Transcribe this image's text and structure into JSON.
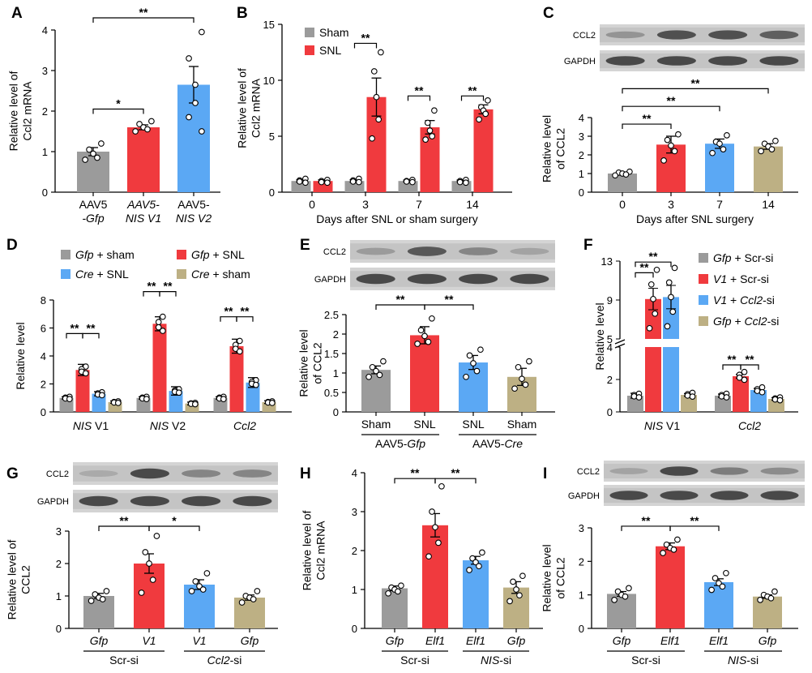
{
  "colors": {
    "gray": "#9B9B9B",
    "red": "#F03A3E",
    "blue": "#5BA8F4",
    "tan": "#BDB084"
  },
  "chart_data": [
    {
      "panel": "A",
      "type": "bar",
      "ylabel": [
        "Relative level of",
        "Ccl2 mRNA"
      ],
      "ylim": [
        0,
        4
      ],
      "yticks": [
        0,
        1,
        2,
        3,
        4
      ],
      "categories": [
        {
          "lines": [
            "AAV5",
            "-Gfp"
          ],
          "italic_second": true
        },
        {
          "lines": [
            "AAV5-",
            "NIS V1"
          ],
          "italic_all": true
        },
        {
          "lines": [
            "AAV5-",
            "NIS V2"
          ],
          "italic_second": true
        }
      ],
      "bars": [
        {
          "value": 1.0,
          "err": 0.1,
          "color": "gray",
          "points": [
            1.2,
            1.05,
            0.95,
            0.85,
            0.8
          ]
        },
        {
          "value": 1.6,
          "err": 0.06,
          "color": "red",
          "points": [
            1.75,
            1.68,
            1.6,
            1.55,
            1.5
          ]
        },
        {
          "value": 2.65,
          "err": 0.45,
          "color": "blue",
          "points": [
            3.95,
            3.3,
            2.65,
            2.2,
            1.85,
            1.5
          ]
        }
      ],
      "sig": [
        {
          "from": 0,
          "to": 1,
          "label": "*",
          "y": 2.05
        },
        {
          "from": 0,
          "to": 2,
          "label": "**",
          "y": 4.3
        }
      ]
    },
    {
      "panel": "B",
      "type": "bar",
      "ylabel": [
        "Relative level of",
        "Ccl2 mRNA"
      ],
      "xlabel": "Days after SNL or sham surgery",
      "ylim": [
        0,
        15
      ],
      "yticks": [
        0,
        5,
        10,
        15
      ],
      "legend": [
        {
          "name": "Sham",
          "color": "gray"
        },
        {
          "name": "SNL",
          "color": "red"
        }
      ],
      "categories": [
        "0",
        "3",
        "7",
        "14"
      ],
      "series": [
        {
          "name": "Sham",
          "color": "gray",
          "values": [
            1.0,
            1.0,
            1.0,
            1.0
          ],
          "err": [
            0.1,
            0.1,
            0.08,
            0.08
          ]
        },
        {
          "name": "SNL",
          "color": "red",
          "values": [
            1.0,
            8.5,
            5.8,
            7.4
          ],
          "err": [
            0.1,
            1.7,
            0.6,
            0.4
          ]
        }
      ],
      "points": [
        [
          [
            1.2,
            1.05,
            0.95,
            0.85
          ],
          [
            1.1,
            1.0,
            0.9,
            0.85
          ]
        ],
        [
          [
            1.2,
            1.05,
            0.95,
            0.9
          ],
          [
            12.5,
            10.8,
            8.5,
            6.5,
            4.8
          ]
        ],
        [
          [
            1.1,
            1.0,
            0.95,
            0.9
          ],
          [
            7.3,
            6.2,
            5.5,
            5.0,
            4.7
          ]
        ],
        [
          [
            1.1,
            1.0,
            0.9,
            0.85
          ],
          [
            8.2,
            7.6,
            7.3,
            7.0,
            6.5
          ]
        ]
      ],
      "sig": [
        {
          "group": 1,
          "label": "**",
          "y": 13.3
        },
        {
          "group": 2,
          "label": "**",
          "y": 8.6
        },
        {
          "group": 3,
          "label": "**",
          "y": 8.6
        }
      ]
    },
    {
      "panel": "C",
      "type": "bar",
      "ylabel": [
        "Relative level",
        "of CCL2"
      ],
      "xlabel": "Days after SNL surgery",
      "ylim": [
        0,
        4
      ],
      "yticks": [
        0,
        1,
        2,
        3,
        4
      ],
      "blot": [
        "CCL2",
        "GAPDH"
      ],
      "categories": [
        "0",
        "3",
        "7",
        "14"
      ],
      "bars": [
        {
          "value": 1.0,
          "err": 0.08,
          "color": "gray",
          "points": [
            1.1,
            1.05,
            1.0,
            0.95,
            0.9
          ]
        },
        {
          "value": 2.55,
          "err": 0.45,
          "color": "red",
          "points": [
            3.1,
            2.8,
            2.5,
            2.2,
            1.7
          ]
        },
        {
          "value": 2.6,
          "err": 0.25,
          "color": "blue",
          "points": [
            3.05,
            2.7,
            2.6,
            2.3,
            2.1
          ]
        },
        {
          "value": 2.45,
          "err": 0.15,
          "color": "tan",
          "points": [
            2.75,
            2.6,
            2.45,
            2.3,
            2.2
          ]
        }
      ],
      "sig": [
        {
          "from": 0,
          "to": 1,
          "label": "**",
          "y": 3.65
        },
        {
          "from": 0,
          "to": 2,
          "label": "**",
          "y": 4.6
        },
        {
          "from": 0,
          "to": 3,
          "label": "**",
          "y": 5.55
        }
      ]
    },
    {
      "panel": "D",
      "type": "bar",
      "ylabel": [
        "Relative level"
      ],
      "ylim": [
        0,
        8
      ],
      "yticks": [
        0,
        2,
        4,
        6,
        8
      ],
      "legend": [
        {
          "name": "Gfp + sham",
          "italic": "Gfp",
          "rest": " + sham",
          "color": "gray"
        },
        {
          "name": "Gfp + SNL",
          "italic": "Gfp",
          "rest": " + SNL",
          "color": "red"
        },
        {
          "name": "Cre + SNL",
          "italic": "Cre",
          "rest": " + SNL",
          "color": "blue"
        },
        {
          "name": "Cre + sham",
          "italic": "Cre",
          "rest": " + sham",
          "color": "tan"
        }
      ],
      "categories": [
        {
          "italic": "NIS",
          "rest": " V1"
        },
        {
          "italic": "NIS",
          "rest": " V2"
        },
        {
          "italic": "Ccl2",
          "rest": ""
        }
      ],
      "series": [
        {
          "name": "Gfp + sham",
          "color": "gray",
          "values": [
            1.0,
            1.0,
            1.0
          ],
          "err": [
            0.08,
            0.08,
            0.08
          ]
        },
        {
          "name": "Gfp + SNL",
          "color": "red",
          "values": [
            3.0,
            6.3,
            4.7
          ],
          "err": [
            0.4,
            0.5,
            0.5
          ]
        },
        {
          "name": "Cre + SNL",
          "color": "blue",
          "values": [
            1.3,
            1.5,
            2.1
          ],
          "err": [
            0.15,
            0.3,
            0.35
          ]
        },
        {
          "name": "Cre + sham",
          "color": "tan",
          "values": [
            0.7,
            0.6,
            0.7
          ],
          "err": [
            0.08,
            0.1,
            0.1
          ]
        }
      ],
      "sig": [
        {
          "group": 0,
          "labels": [
            "**",
            "**"
          ],
          "y": 5.6
        },
        {
          "group": 1,
          "labels": [
            "**",
            "**"
          ],
          "y": 8.6
        },
        {
          "group": 2,
          "labels": [
            "**",
            "**"
          ],
          "y": 6.8
        }
      ]
    },
    {
      "panel": "E",
      "type": "bar",
      "ylabel": [
        "Relative level",
        "of CCL2"
      ],
      "ylim": [
        0,
        2.5
      ],
      "yticks": [
        0,
        0.5,
        1,
        1.5,
        2,
        2.5
      ],
      "blot": [
        "CCL2",
        "GAPDH"
      ],
      "categories": [
        "Sham",
        "SNL",
        "SNL",
        "Sham"
      ],
      "groups": [
        {
          "label": "AAV5-Gfp",
          "plain": "AAV5-",
          "italic": "Gfp",
          "from": 0,
          "to": 1
        },
        {
          "label": "AAV5-Cre",
          "plain": "AAV5-",
          "italic": "Cre",
          "from": 2,
          "to": 3
        }
      ],
      "bars": [
        {
          "value": 1.08,
          "err": 0.1,
          "color": "gray",
          "points": [
            1.3,
            1.15,
            1.05,
            0.95,
            0.9
          ]
        },
        {
          "value": 1.97,
          "err": 0.22,
          "color": "red",
          "points": [
            2.4,
            2.1,
            1.95,
            1.8,
            1.75
          ]
        },
        {
          "value": 1.27,
          "err": 0.18,
          "color": "blue",
          "points": [
            1.6,
            1.45,
            1.25,
            1.05,
            0.9
          ]
        },
        {
          "value": 0.9,
          "err": 0.22,
          "color": "tan",
          "points": [
            1.3,
            1.15,
            0.85,
            0.7,
            0.6
          ]
        }
      ],
      "sig": [
        {
          "from": 0,
          "to": 1,
          "label": "**",
          "y": 2.75
        },
        {
          "from": 1,
          "to": 2,
          "label": "**",
          "y": 2.75
        }
      ]
    },
    {
      "panel": "F",
      "type": "bar",
      "ylabel": [
        "Relative level"
      ],
      "broken_axis": true,
      "yticks_low": [
        0,
        2,
        4
      ],
      "yticks_high": [
        5,
        9,
        13
      ],
      "legend": [
        {
          "name": "Gfp + Scr-si",
          "italic": "Gfp",
          "rest": "  +  Scr-si",
          "color": "gray"
        },
        {
          "name": "V1 + Scr-si",
          "italic": "V1",
          "rest": "  +  Scr-si",
          "color": "red"
        },
        {
          "name": "V1 + Ccl2-si",
          "italic": "V1",
          "rest": "  +  ",
          "italic2": "Ccl2",
          "rest2": "-si",
          "color": "blue"
        },
        {
          "name": "Gfp + Ccl2-si",
          "italic": "Gfp",
          "rest": " + ",
          "italic2": "Ccl2",
          "rest2": "-si",
          "color": "tan"
        }
      ],
      "categories": [
        {
          "italic": "NIS",
          "rest": " V1"
        },
        {
          "italic": "Ccl2",
          "rest": ""
        }
      ],
      "series": [
        {
          "name": "Gfp + Scr-si",
          "color": "gray",
          "values": [
            1.0,
            1.0
          ],
          "err": [
            0.15,
            0.1
          ]
        },
        {
          "name": "V1 + Scr-si",
          "color": "red",
          "values": [
            9.1,
            2.2
          ],
          "err": [
            1.1,
            0.12
          ]
        },
        {
          "name": "V1 + Ccl2-si",
          "color": "blue",
          "values": [
            9.3,
            1.35
          ],
          "err": [
            1.2,
            0.1
          ]
        },
        {
          "name": "Gfp + Ccl2-si",
          "color": "tan",
          "values": [
            1.05,
            0.8
          ],
          "err": [
            0.08,
            0.08
          ]
        }
      ],
      "sig": [
        {
          "group": 0,
          "pairs": [
            [
              0,
              1,
              "**",
              11.8
            ],
            [
              0,
              2,
              "**",
              12.9
            ]
          ]
        },
        {
          "group": 1,
          "pairs": [
            [
              0,
              1,
              "**",
              2.9
            ],
            [
              1,
              2,
              "**",
              2.9
            ]
          ]
        }
      ]
    },
    {
      "panel": "G",
      "type": "bar",
      "ylabel": [
        "Relative level of",
        "CCL2"
      ],
      "ylim": [
        0,
        3
      ],
      "yticks": [
        0,
        1,
        2,
        3
      ],
      "blot": [
        "CCL2",
        "GAPDH"
      ],
      "categories": [
        {
          "italic": "Gfp"
        },
        {
          "italic": "V1"
        },
        {
          "italic": "V1"
        },
        {
          "italic": "Gfp"
        }
      ],
      "groups": [
        {
          "label": "Scr-si",
          "from": 0,
          "to": 1
        },
        {
          "label": "Ccl2-si",
          "italic": "Ccl2",
          "rest": "-si",
          "from": 2,
          "to": 3
        }
      ],
      "bars": [
        {
          "value": 1.0,
          "err": 0.08,
          "color": "gray",
          "points": [
            1.15,
            1.05,
            0.95,
            0.9,
            0.85
          ]
        },
        {
          "value": 2.0,
          "err": 0.3,
          "color": "red",
          "points": [
            2.85,
            2.35,
            2.0,
            1.5,
            1.1
          ]
        },
        {
          "value": 1.35,
          "err": 0.15,
          "color": "blue",
          "points": [
            1.7,
            1.45,
            1.3,
            1.2,
            1.15
          ]
        },
        {
          "value": 0.95,
          "err": 0.08,
          "color": "tan",
          "points": [
            1.15,
            1.0,
            0.95,
            0.9,
            0.8
          ]
        }
      ],
      "sig": [
        {
          "from": 0,
          "to": 1,
          "label": "**",
          "y": 3.15
        },
        {
          "from": 1,
          "to": 2,
          "label": "*",
          "y": 3.15
        }
      ]
    },
    {
      "panel": "H",
      "type": "bar",
      "ylabel": [
        "Relative level of",
        "Ccl2 mRNA"
      ],
      "ylim": [
        0,
        4
      ],
      "yticks": [
        0,
        1,
        2,
        3,
        4
      ],
      "categories": [
        {
          "italic": "Gfp"
        },
        {
          "italic": "Elf1"
        },
        {
          "italic": "Elf1"
        },
        {
          "italic": "Gfp"
        }
      ],
      "groups": [
        {
          "label": "Scr-si",
          "from": 0,
          "to": 1
        },
        {
          "label": "NIS-si",
          "italic": "NIS",
          "rest": "-si",
          "from": 2,
          "to": 3
        }
      ],
      "bars": [
        {
          "value": 1.03,
          "err": 0.06,
          "color": "gray",
          "points": [
            1.1,
            1.05,
            1.0,
            0.95,
            0.9
          ]
        },
        {
          "value": 2.65,
          "err": 0.3,
          "color": "red",
          "points": [
            3.65,
            3.0,
            2.6,
            2.2,
            1.85
          ]
        },
        {
          "value": 1.75,
          "err": 0.1,
          "color": "blue",
          "points": [
            1.95,
            1.8,
            1.7,
            1.6,
            1.5
          ]
        },
        {
          "value": 1.05,
          "err": 0.15,
          "color": "tan",
          "points": [
            1.35,
            1.2,
            1.0,
            0.85,
            0.7
          ]
        }
      ],
      "sig": [
        {
          "from": 0,
          "to": 1,
          "label": "**",
          "y": 3.85
        },
        {
          "from": 1,
          "to": 2,
          "label": "**",
          "y": 3.85
        }
      ]
    },
    {
      "panel": "I",
      "type": "bar",
      "ylabel": [
        "Relative level",
        "of CCL2"
      ],
      "ylim": [
        0,
        3
      ],
      "yticks": [
        0,
        1,
        2,
        3
      ],
      "blot": [
        "CCL2",
        "GAPDH"
      ],
      "categories": [
        {
          "italic": "Gfp"
        },
        {
          "italic": "Elf1"
        },
        {
          "italic": "Elf1"
        },
        {
          "italic": "Gfp"
        }
      ],
      "groups": [
        {
          "label": "Scr-si",
          "from": 0,
          "to": 1
        },
        {
          "label": "NIS-si",
          "italic": "NIS",
          "rest": "-si",
          "from": 2,
          "to": 3
        }
      ],
      "bars": [
        {
          "value": 1.03,
          "err": 0.07,
          "color": "gray",
          "points": [
            1.2,
            1.1,
            1.0,
            0.95,
            0.85
          ]
        },
        {
          "value": 2.45,
          "err": 0.1,
          "color": "red",
          "points": [
            2.65,
            2.5,
            2.4,
            2.35,
            2.25
          ]
        },
        {
          "value": 1.38,
          "err": 0.1,
          "color": "blue",
          "points": [
            1.65,
            1.5,
            1.35,
            1.25,
            1.15
          ]
        },
        {
          "value": 0.95,
          "err": 0.05,
          "color": "tan",
          "points": [
            1.1,
            1.0,
            0.95,
            0.9,
            0.85
          ]
        }
      ],
      "sig": [
        {
          "from": 0,
          "to": 1,
          "label": "**",
          "y": 3.05
        },
        {
          "from": 1,
          "to": 2,
          "label": "**",
          "y": 3.05
        }
      ]
    }
  ]
}
